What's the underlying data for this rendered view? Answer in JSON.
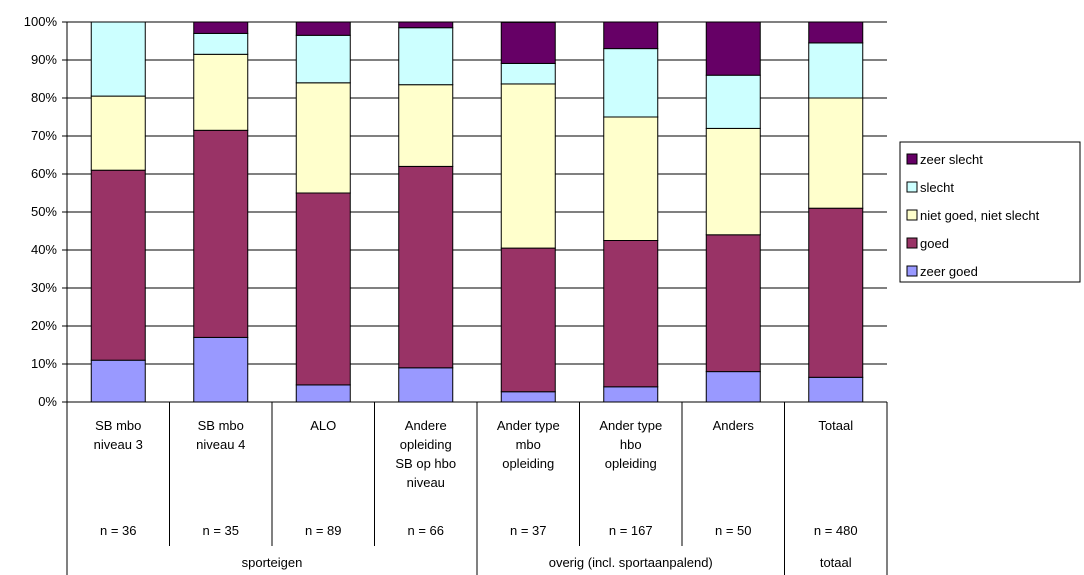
{
  "chart_data": {
    "type": "bar",
    "stacked": true,
    "percent": true,
    "ylim": [
      0,
      100
    ],
    "ytick_step": 10,
    "ytick_suffix": "%",
    "grid": "horizontal",
    "legend_placement": "right",
    "categories": [
      [
        "SB mbo",
        "niveau 3"
      ],
      [
        "SB mbo",
        "niveau 4"
      ],
      [
        "ALO"
      ],
      [
        "Andere",
        "opleiding",
        "SB op hbo",
        "niveau"
      ],
      [
        "Ander type",
        "mbo",
        "opleiding"
      ],
      [
        "Ander type",
        "hbo",
        "opleiding"
      ],
      [
        "Anders"
      ],
      [
        "Totaal"
      ]
    ],
    "n_labels": [
      "n = 36",
      "n = 35",
      "n = 89",
      "n = 66",
      "n = 37",
      "n = 167",
      "n = 50",
      "n = 480"
    ],
    "groups": [
      {
        "label": "sporteigen",
        "categories": [
          0,
          1,
          2,
          3
        ]
      },
      {
        "label": "overig (incl. sportaanpalend)",
        "categories": [
          4,
          5,
          6
        ]
      },
      {
        "label": "totaal",
        "categories": [
          7
        ]
      }
    ],
    "series": [
      {
        "name": "zeer goed",
        "color": "#9999FF",
        "values": [
          11,
          17,
          4.5,
          9,
          2.7,
          4,
          8,
          6.5
        ]
      },
      {
        "name": "goed",
        "color": "#993366",
        "values": [
          50,
          54.5,
          50.5,
          53,
          37.8,
          38.5,
          36,
          44.5
        ]
      },
      {
        "name": "niet goed, niet slecht",
        "color": "#FFFFCC",
        "values": [
          19.5,
          20,
          29,
          21.5,
          43.2,
          32.5,
          28,
          29
        ]
      },
      {
        "name": "slecht",
        "color": "#CCFFFF",
        "values": [
          19.5,
          5.5,
          12.5,
          15,
          5.4,
          18,
          14,
          14.5
        ]
      },
      {
        "name": "zeer slecht",
        "color": "#660066",
        "values": [
          0,
          3,
          3.5,
          1.5,
          10.8,
          7,
          14,
          5.5
        ]
      }
    ]
  }
}
